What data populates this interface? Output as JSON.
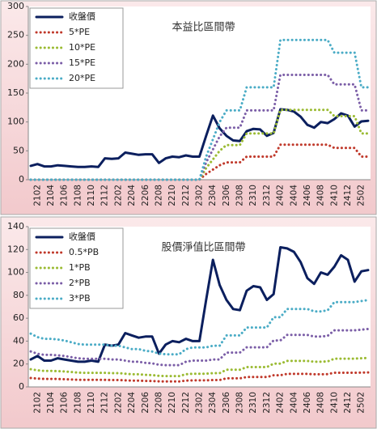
{
  "chart_data": [
    {
      "type": "line",
      "title": "本益比區間帶",
      "legend": "upper left",
      "grid": false,
      "categories": [
        null,
        "2102",
        null,
        "2104",
        null,
        "2106",
        null,
        "2108",
        null,
        "2110",
        null,
        "2112",
        null,
        "2202",
        null,
        "2204",
        null,
        "2206",
        null,
        "2208",
        null,
        "2210",
        null,
        "2212",
        null,
        "2302",
        null,
        "2304",
        null,
        "2306",
        null,
        "2308",
        null,
        "2310",
        null,
        "2312",
        null,
        "2402",
        null,
        "2404",
        null,
        "2406",
        null,
        "2408",
        null,
        "2410",
        null,
        "2412",
        null,
        "2502",
        null
      ],
      "ylim": [
        0,
        300
      ],
      "yticks": [
        0,
        50,
        100,
        150,
        200,
        250,
        300
      ],
      "series": [
        {
          "name": "收盤價",
          "color": "#0b1f5e",
          "values": [
            24,
            27,
            23,
            23,
            25,
            24,
            23,
            22,
            22,
            23,
            22,
            37,
            36,
            37,
            47,
            45,
            43,
            44,
            44,
            29,
            37,
            40,
            39,
            42,
            40,
            40,
            76,
            111,
            89,
            76,
            68,
            67,
            84,
            88,
            87,
            76,
            81,
            122,
            121,
            118,
            109,
            95,
            90,
            100,
            98,
            105,
            115,
            111,
            92,
            101,
            102
          ]
        },
        {
          "name": "5*PE",
          "color": "#c0392b",
          "values": [
            0,
            0,
            0,
            0,
            0,
            0,
            0,
            0,
            0,
            0,
            0,
            0,
            0,
            0,
            0,
            0,
            0,
            0,
            0,
            0,
            0,
            0,
            0,
            0,
            0,
            0,
            10,
            17.5,
            25,
            30,
            30,
            30,
            40,
            40,
            40,
            40,
            40,
            60.5,
            60.5,
            60.5,
            60.5,
            60.5,
            60.5,
            60.5,
            60.5,
            55,
            55,
            55,
            55,
            40,
            40
          ]
        },
        {
          "name": "10*PE",
          "color": "#9bbb33",
          "values": [
            0,
            0,
            0,
            0,
            0,
            0,
            0,
            0,
            0,
            0,
            0,
            0,
            0,
            0,
            0,
            0,
            0,
            0,
            0,
            0,
            0,
            0,
            0,
            0,
            0,
            0,
            20,
            35,
            50,
            60,
            60,
            60,
            80,
            80,
            80,
            80,
            80,
            121,
            121,
            121,
            121,
            121,
            121,
            121,
            121,
            110,
            110,
            110,
            110,
            80,
            80
          ]
        },
        {
          "name": "15*PE",
          "color": "#7b5ea7",
          "values": [
            0,
            0,
            0,
            0,
            0,
            0,
            0,
            0,
            0,
            0,
            0,
            0,
            0,
            0,
            0,
            0,
            0,
            0,
            0,
            0,
            0,
            0,
            0,
            0,
            0,
            0,
            30,
            52.5,
            75,
            90,
            90,
            90,
            120,
            120,
            120,
            120,
            120,
            181.5,
            181.5,
            181.5,
            181.5,
            181.5,
            181.5,
            181.5,
            181.5,
            165,
            165,
            165,
            165,
            120,
            120
          ]
        },
        {
          "name": "20*PE",
          "color": "#4bacc6",
          "values": [
            0,
            0,
            0,
            0,
            0,
            0,
            0,
            0,
            0,
            0,
            0,
            0,
            0,
            0,
            0,
            0,
            0,
            0,
            0,
            0,
            0,
            0,
            0,
            0,
            0,
            0,
            40,
            70,
            100,
            120,
            120,
            120,
            160,
            160,
            160,
            160,
            160,
            242,
            242,
            242,
            242,
            242,
            242,
            242,
            242,
            220,
            220,
            220,
            220,
            160,
            160
          ]
        }
      ]
    },
    {
      "type": "line",
      "title": "股價淨值比區間帶",
      "legend": "upper left",
      "grid": false,
      "categories": [
        null,
        "2102",
        null,
        "2104",
        null,
        "2106",
        null,
        "2108",
        null,
        "2110",
        null,
        "2112",
        null,
        "2202",
        null,
        "2204",
        null,
        "2206",
        null,
        "2208",
        null,
        "2210",
        null,
        "2212",
        null,
        "2302",
        null,
        "2304",
        null,
        "2306",
        null,
        "2308",
        null,
        "2310",
        null,
        "2312",
        null,
        "2402",
        null,
        "2404",
        null,
        "2406",
        null,
        "2408",
        null,
        "2410",
        null,
        "2412",
        null,
        "2502",
        null
      ],
      "ylim": [
        0,
        140
      ],
      "yticks": [
        0,
        20,
        40,
        60,
        80,
        100,
        120,
        140
      ],
      "series": [
        {
          "name": "收盤價",
          "color": "#0b1f5e",
          "values": [
            24,
            27,
            23,
            23,
            25,
            24,
            23,
            22,
            22,
            23,
            22,
            37,
            36,
            37,
            47,
            45,
            43,
            44,
            44,
            29,
            37,
            40,
            39,
            42,
            40,
            40,
            76,
            111,
            89,
            76,
            68,
            67,
            84,
            88,
            87,
            76,
            81,
            122,
            121,
            118,
            109,
            95,
            90,
            100,
            98,
            105,
            115,
            111,
            92,
            101,
            102
          ]
        },
        {
          "name": "0.5*PB",
          "color": "#c0392b",
          "values": [
            7.75,
            7.25,
            7,
            7,
            6.9,
            6.75,
            6.5,
            6.25,
            6.15,
            6.15,
            6.15,
            6.15,
            6,
            6,
            5.75,
            5.5,
            5.5,
            5.25,
            5.15,
            4.85,
            4.75,
            4.75,
            4.75,
            5.5,
            5.75,
            5.75,
            5.75,
            6,
            6,
            7.5,
            7.5,
            7.5,
            8.65,
            8.65,
            8.65,
            8.65,
            10.15,
            10.15,
            11.35,
            11.35,
            11.35,
            11.35,
            11,
            11,
            11.15,
            12.35,
            12.35,
            12.35,
            12.35,
            12.5,
            12.65
          ]
        },
        {
          "name": "1*PB",
          "color": "#9bbb33",
          "values": [
            15.5,
            14.5,
            14,
            14,
            13.8,
            13.5,
            13,
            12.5,
            12.3,
            12.3,
            12.3,
            12.3,
            12,
            12,
            11.5,
            11,
            11,
            10.5,
            10.3,
            9.7,
            9.5,
            9.5,
            9.5,
            11,
            11.5,
            11.5,
            11.5,
            12,
            12,
            15,
            15,
            15,
            17.3,
            17.3,
            17.3,
            17.3,
            20.3,
            20.3,
            22.7,
            22.7,
            22.7,
            22.7,
            22,
            22,
            22.3,
            24.7,
            24.7,
            24.7,
            24.7,
            25,
            25.3
          ]
        },
        {
          "name": "2*PB",
          "color": "#7b5ea7",
          "values": [
            31,
            29,
            28,
            28,
            27.6,
            27,
            26,
            25,
            24.6,
            24.6,
            24.6,
            24.6,
            24,
            24,
            23,
            22,
            22,
            21,
            20.6,
            19.4,
            19,
            19,
            19,
            22,
            23,
            23,
            23,
            24,
            24,
            30,
            30,
            30,
            34.6,
            34.6,
            34.6,
            34.6,
            40.6,
            40.6,
            45.4,
            45.4,
            45.4,
            45.4,
            44,
            44,
            44.6,
            49.4,
            49.4,
            49.4,
            49.4,
            50,
            50.6
          ]
        },
        {
          "name": "3*PB",
          "color": "#4bacc6",
          "values": [
            46.5,
            43.5,
            42,
            42,
            41.4,
            40.5,
            39,
            37.5,
            36.9,
            36.9,
            36.9,
            36.9,
            36,
            36,
            34.5,
            33,
            33,
            31.5,
            30.9,
            29.1,
            28.5,
            28.5,
            28.5,
            33,
            34.5,
            34.5,
            34.5,
            36,
            36,
            45,
            45,
            45,
            51.9,
            51.9,
            51.9,
            51.9,
            60.9,
            60.9,
            68.1,
            68.1,
            68.1,
            68.1,
            66,
            66,
            66.9,
            74.1,
            74.1,
            74.1,
            74.1,
            75,
            75.9
          ]
        }
      ]
    }
  ]
}
